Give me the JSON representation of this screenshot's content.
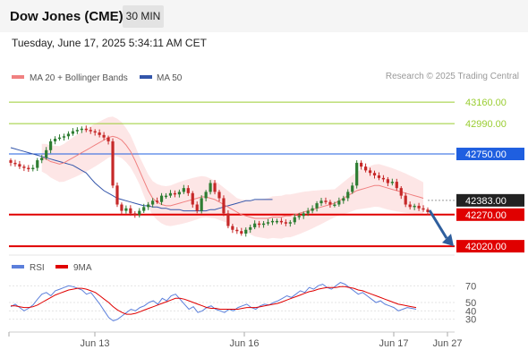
{
  "header": {
    "title": "Dow Jones (CME)",
    "interval": "30 MIN"
  },
  "datetime": "Tuesday, June 17, 2025 5:34:11 AM CET",
  "copyright": "Research © 2025 Trading Central",
  "colors": {
    "up": "#2e7d32",
    "down": "#c62828",
    "ma20": "#f08080",
    "bands": "#fde0e0",
    "ma50": "#3355aa",
    "resistance": "#9acd32",
    "pivot": "#1f5fe0",
    "support": "#e00000",
    "current": "#222222",
    "rsi": "#5b7fdb",
    "rsi_ma": "#e00000",
    "arrow": "#2f5f9e"
  },
  "chart_data": [
    {
      "type": "candlestick",
      "legend": [
        {
          "name": "MA 20 + Bollinger Bands",
          "color": "#f08080"
        },
        {
          "name": "MA 50",
          "color": "#3355aa"
        }
      ],
      "x_ticks": [
        "Jun 13",
        "Jun 16",
        "Jun 17",
        "Jun 27"
      ],
      "ylim": [
        41950,
        43260
      ],
      "levels": [
        {
          "value": 43160,
          "label": "43160.00",
          "kind": "resistance"
        },
        {
          "value": 42990,
          "label": "42990.00",
          "kind": "resistance"
        },
        {
          "value": 42750,
          "label": "42750.00",
          "kind": "pivot"
        },
        {
          "value": 42383,
          "label": "42383.00",
          "kind": "current"
        },
        {
          "value": 42270,
          "label": "42270.00",
          "kind": "support"
        },
        {
          "value": 42020,
          "label": "42020.00",
          "kind": "support"
        }
      ],
      "closes": [
        42680,
        42670,
        42650,
        42640,
        42630,
        42640,
        42700,
        42720,
        42780,
        42850,
        42870,
        42880,
        42890,
        42910,
        42930,
        42940,
        42950,
        42940,
        42930,
        42920,
        42900,
        42880,
        42850,
        42500,
        42350,
        42300,
        42320,
        42280,
        42270,
        42300,
        42330,
        42350,
        42380,
        42370,
        42420,
        42420,
        42440,
        42430,
        42450,
        42480,
        42440,
        42350,
        42300,
        42400,
        42450,
        42520,
        42450,
        42400,
        42280,
        42180,
        42150,
        42140,
        42120,
        42150,
        42170,
        42200,
        42190,
        42200,
        42210,
        42220,
        42220,
        42210,
        42200,
        42210,
        42250,
        42260,
        42280,
        42300,
        42320,
        42360,
        42380,
        42370,
        42350,
        42350,
        42380,
        42400,
        42450,
        42500,
        42680,
        42650,
        42620,
        42600,
        42580,
        42560,
        42550,
        42520,
        42530,
        42480,
        42420,
        42350,
        42330,
        42340,
        42320,
        42310,
        42290
      ],
      "ma20": [
        42720,
        42710,
        42690,
        42680,
        42670,
        42680,
        42700,
        42720,
        42740,
        42760,
        42780,
        42800,
        42820,
        42840,
        42860,
        42880,
        42890,
        42880,
        42860,
        42820,
        42770,
        42700,
        42620,
        42540,
        42460,
        42400,
        42370,
        42350,
        42340,
        42340,
        42350,
        42360,
        42370,
        42380,
        42390,
        42400,
        42410,
        42410,
        42400,
        42390,
        42370,
        42350,
        42330,
        42310,
        42290,
        42270,
        42260,
        42250,
        42240,
        42240,
        42240,
        42240,
        42250,
        42250,
        42250,
        42260,
        42260,
        42270,
        42280,
        42290,
        42300,
        42310,
        42320,
        42330,
        42340,
        42350,
        42360,
        42380,
        42400,
        42420,
        42440,
        42460,
        42470,
        42480,
        42490,
        42500,
        42500,
        42490,
        42480,
        42470,
        42460,
        42450,
        42440,
        42430,
        42420,
        42410,
        42400
      ],
      "ma50": [
        42800,
        42790,
        42780,
        42770,
        42760,
        42750,
        42740,
        42730,
        42720,
        42710,
        42700,
        42690,
        42680,
        42670,
        42660,
        42640,
        42620,
        42600,
        42560,
        42520,
        42490,
        42460,
        42440,
        42420,
        42400,
        42390,
        42380,
        42370,
        42360,
        42350,
        42340,
        42340,
        42330,
        42330,
        42320,
        42320,
        42310,
        42310,
        42310,
        42300,
        42300,
        42300,
        42300,
        42300,
        42300,
        42310,
        42310,
        42320,
        42330,
        42340,
        42350,
        42360,
        42370,
        42380,
        42380,
        42390,
        42390,
        42390,
        42390,
        42390
      ]
    },
    {
      "type": "line",
      "legend": [
        {
          "name": "RSI",
          "color": "#5b7fdb"
        },
        {
          "name": "9MA",
          "color": "#e00000"
        }
      ],
      "y_ticks": [
        "70",
        "50",
        "40",
        "30"
      ],
      "ylim": [
        20,
        80
      ],
      "rsi": [
        45,
        48,
        44,
        40,
        43,
        47,
        54,
        60,
        62,
        58,
        64,
        66,
        68,
        70,
        69,
        67,
        65,
        60,
        62,
        55,
        48,
        40,
        32,
        28,
        30,
        34,
        38,
        42,
        40,
        44,
        46,
        50,
        52,
        48,
        55,
        52,
        58,
        60,
        54,
        48,
        42,
        45,
        38,
        40,
        44,
        46,
        42,
        40,
        38,
        42,
        40,
        44,
        46,
        48,
        44,
        42,
        46,
        48,
        47,
        50,
        52,
        55,
        58,
        56,
        60,
        64,
        62,
        68,
        66,
        70,
        72,
        68,
        66,
        70,
        74,
        72,
        68,
        64,
        60,
        62,
        58,
        54,
        50,
        52,
        48,
        46,
        44,
        40,
        42,
        44,
        43,
        42
      ],
      "rsi_ma": [
        46,
        46,
        45,
        44,
        44,
        45,
        47,
        50,
        53,
        56,
        59,
        61,
        63,
        65,
        66,
        67,
        67,
        66,
        64,
        62,
        58,
        54,
        50,
        45,
        41,
        38,
        36,
        36,
        37,
        39,
        41,
        43,
        45,
        47,
        49,
        51,
        53,
        55,
        55,
        54,
        52,
        50,
        48,
        46,
        44,
        43,
        43,
        42,
        42,
        42,
        42,
        42,
        43,
        44,
        44,
        44,
        45,
        46,
        47,
        48,
        49,
        51,
        53,
        55,
        57,
        59,
        61,
        63,
        64,
        66,
        67,
        68,
        68,
        68,
        69,
        69,
        68,
        67,
        65,
        64,
        62,
        60,
        58,
        56,
        54,
        52,
        50,
        48,
        47,
        46,
        45,
        44
      ]
    }
  ]
}
